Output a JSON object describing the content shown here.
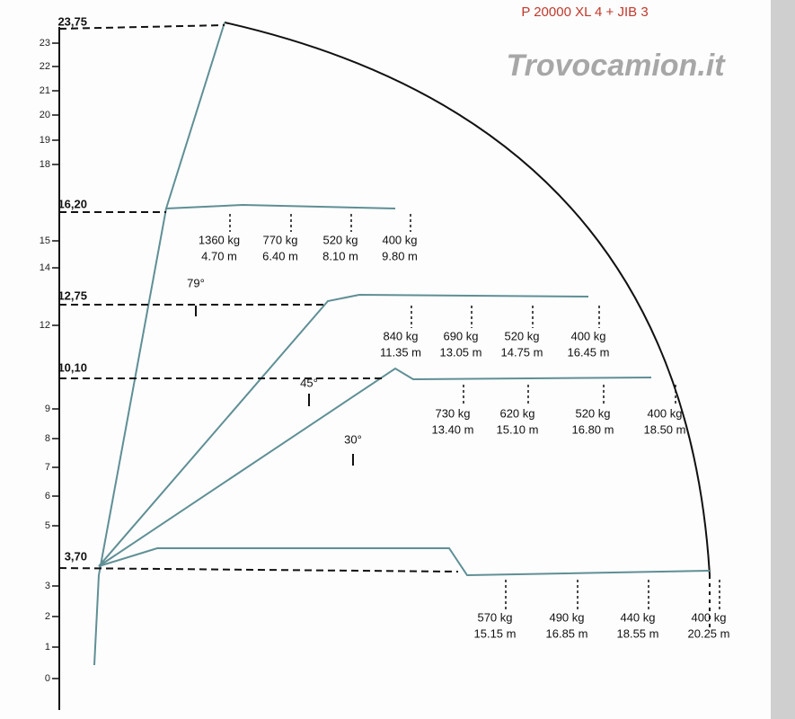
{
  "header": {
    "title": "P 20000 XL 4 + JIB 3",
    "watermark": "Trovocamion.it"
  },
  "axis": {
    "ticks": [
      "0",
      "1",
      "2",
      "3",
      "5",
      "6",
      "7",
      "8",
      "9",
      "12",
      "14",
      "15",
      "18",
      "19",
      "20",
      "21",
      "22",
      "23"
    ],
    "levels": [
      "3,70",
      "10,10",
      "12,75",
      "16,20",
      "23,75"
    ]
  },
  "angles": [
    "79°",
    "45°",
    "30°"
  ],
  "loads": [
    [
      {
        "load": "1360 kg",
        "reach": "4.70 m"
      },
      {
        "load": "770 kg",
        "reach": "6.40 m"
      },
      {
        "load": "520 kg",
        "reach": "8.10 m"
      },
      {
        "load": "400 kg",
        "reach": "9.80 m"
      }
    ],
    [
      {
        "load": "840 kg",
        "reach": "11.35 m"
      },
      {
        "load": "690 kg",
        "reach": "13.05 m"
      },
      {
        "load": "520 kg",
        "reach": "14.75 m"
      },
      {
        "load": "400 kg",
        "reach": "16.45 m"
      }
    ],
    [
      {
        "load": "730 kg",
        "reach": "13.40 m"
      },
      {
        "load": "620 kg",
        "reach": "15.10 m"
      },
      {
        "load": "520 kg",
        "reach": "16.80 m"
      },
      {
        "load": "400 kg",
        "reach": "18.50 m"
      }
    ],
    [
      {
        "load": "570 kg",
        "reach": "15.15 m"
      },
      {
        "load": "490 kg",
        "reach": "16.85 m"
      },
      {
        "load": "440 kg",
        "reach": "18.55 m"
      },
      {
        "load": "400 kg",
        "reach": "20.25 m"
      }
    ]
  ]
}
